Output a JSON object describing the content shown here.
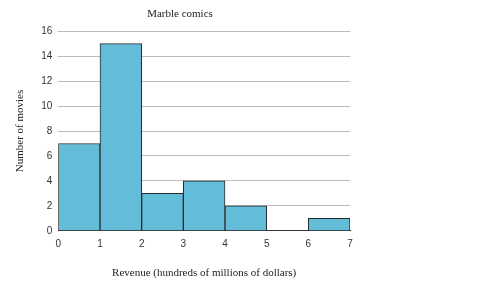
{
  "chart_data": {
    "type": "histogram",
    "title": "Marble comics",
    "x_label": "Revenue (hundreds of millions of dollars)",
    "y_label": "Number of movies",
    "bins": [
      0,
      1,
      2,
      3,
      4,
      5,
      6,
      7
    ],
    "values": [
      7,
      15,
      3,
      4,
      2,
      0,
      1
    ],
    "color": "#63bcd8",
    "xlim": [
      0,
      7
    ],
    "xticks": [
      0,
      1,
      2,
      3,
      4,
      5,
      6,
      7
    ],
    "ylim": [
      0,
      16
    ],
    "yticks": [
      0,
      2,
      4,
      6,
      8,
      10,
      12,
      14,
      16
    ],
    "grid": true
  }
}
